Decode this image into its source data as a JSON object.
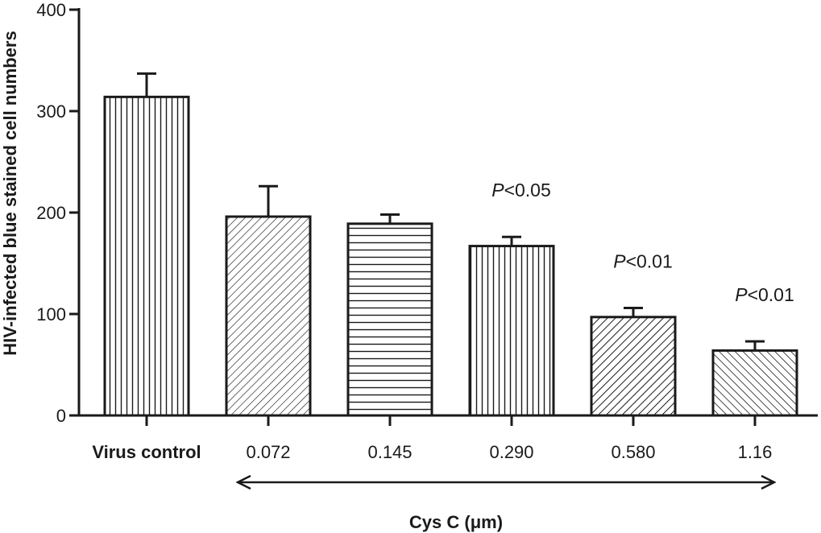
{
  "chart_data": {
    "type": "bar",
    "ylabel": "HIV-infected blue stained cell numbers",
    "xlabel": "Cys C (μm)",
    "ylim": [
      0,
      400
    ],
    "yticks": [
      "0",
      "100",
      "200",
      "300",
      "400"
    ],
    "categories": [
      "Virus control",
      "0.072",
      "0.145",
      "0.290",
      "0.580",
      "1.16"
    ],
    "values": [
      314,
      196,
      189,
      167,
      97,
      64
    ],
    "errors": [
      23,
      30,
      9,
      9,
      9,
      9
    ],
    "patterns": [
      "vertical",
      "diagonal-fine",
      "horizontal",
      "vertical",
      "diagonal",
      "diagonal-reverse"
    ],
    "annotations": [
      {
        "category": "0.290",
        "p_label": "P",
        "text": "<0.05"
      },
      {
        "category": "0.580",
        "p_label": "P",
        "text": "<0.01"
      },
      {
        "category": "1.16",
        "p_label": "P",
        "text": "<0.01"
      }
    ],
    "range_arrow": {
      "from": "0.072",
      "to": "1.16",
      "style": "double-headed"
    },
    "colors": {
      "bar_fill": "#ffffff",
      "stroke": "#1a1a1a"
    }
  }
}
